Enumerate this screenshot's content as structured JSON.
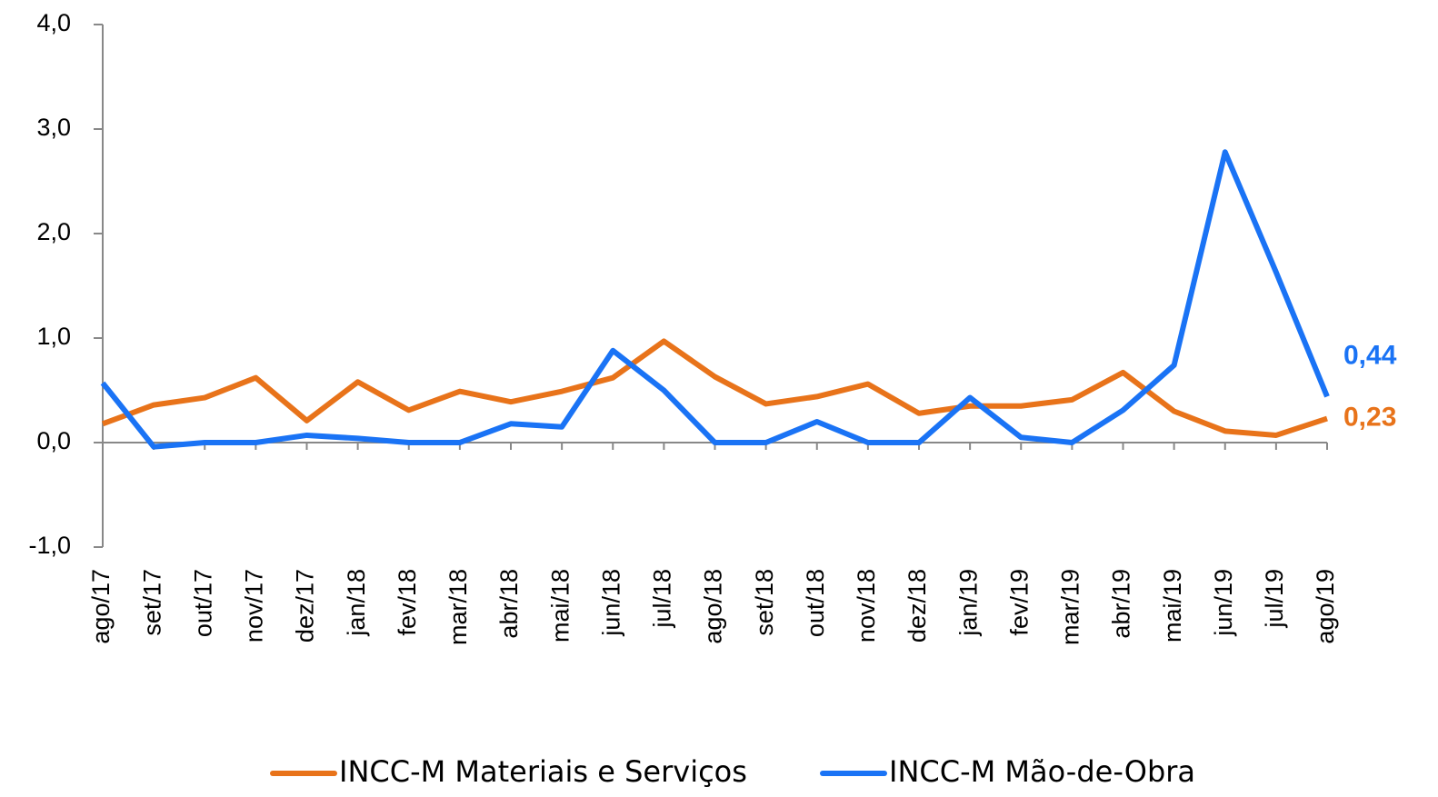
{
  "chart_data": {
    "type": "line",
    "categories": [
      "ago/17",
      "set/17",
      "out/17",
      "nov/17",
      "dez/17",
      "jan/18",
      "fev/18",
      "mar/18",
      "abr/18",
      "mai/18",
      "jun/18",
      "jul/18",
      "ago/18",
      "set/18",
      "out/18",
      "nov/18",
      "dez/18",
      "jan/19",
      "fev/19",
      "mar/19",
      "abr/19",
      "mai/19",
      "jun/19",
      "jul/19",
      "ago/19"
    ],
    "series": [
      {
        "name": "INCC-M Materiais e Serviços",
        "color": "#e8731a",
        "values": [
          0.18,
          0.36,
          0.43,
          0.62,
          0.21,
          0.58,
          0.31,
          0.49,
          0.39,
          0.49,
          0.62,
          0.97,
          0.63,
          0.37,
          0.44,
          0.56,
          0.28,
          0.35,
          0.35,
          0.41,
          0.67,
          0.3,
          0.11,
          0.07,
          0.23
        ],
        "value_labels": [
          null,
          null,
          null,
          null,
          null,
          null,
          null,
          null,
          null,
          null,
          null,
          null,
          null,
          null,
          null,
          null,
          null,
          null,
          null,
          null,
          null,
          null,
          null,
          null,
          "0,23"
        ]
      },
      {
        "name": "INCC-M Mão-de-Obra",
        "color": "#1a73f5",
        "values": [
          0.57,
          -0.04,
          0,
          0,
          0.07,
          0.04,
          0,
          0,
          0.18,
          0.15,
          0.88,
          0.5,
          0,
          0,
          0.2,
          0,
          0,
          0.43,
          0.05,
          0,
          0.31,
          0.74,
          2.78,
          1.63,
          0.44
        ],
        "value_labels": [
          null,
          null,
          null,
          null,
          null,
          null,
          null,
          null,
          null,
          null,
          null,
          null,
          null,
          null,
          null,
          null,
          null,
          null,
          null,
          null,
          null,
          null,
          null,
          null,
          "0,44"
        ]
      }
    ],
    "ylim": [
      -1,
      4
    ],
    "yticks": [
      {
        "value": -1,
        "label": "-1,0"
      },
      {
        "value": 0,
        "label": "0,0"
      },
      {
        "value": 1,
        "label": "1,0"
      },
      {
        "value": 2,
        "label": "2,0"
      },
      {
        "value": 3,
        "label": "3,0"
      },
      {
        "value": 4,
        "label": "4,0"
      }
    ],
    "legend": "bottom"
  }
}
